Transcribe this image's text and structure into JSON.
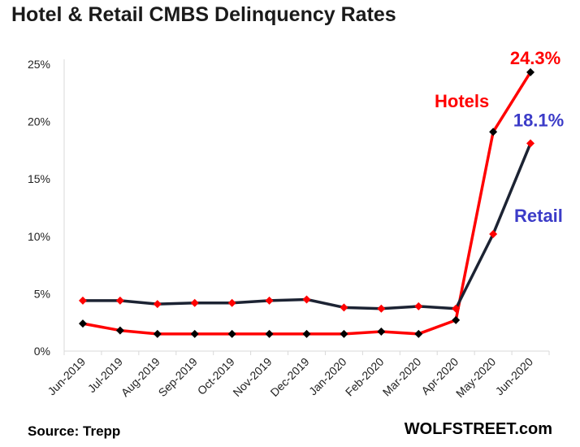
{
  "title": "Hotel & Retail CMBS Delinquency Rates",
  "source": "Source: Trepp",
  "brand": "WOLFSTREET.com",
  "colors": {
    "hotels": "#ff0000",
    "retail": "#1c2333",
    "retail_label": "#3c3cc8",
    "axis": "#d9d9d9"
  },
  "chart_data": {
    "type": "line",
    "title": "Hotel & Retail CMBS Delinquency Rates",
    "xlabel": "",
    "ylabel": "",
    "categories": [
      "Jun-2019",
      "Jul-2019",
      "Aug-2019",
      "Sep-2019",
      "Oct-2019",
      "Nov-2019",
      "Dec-2019",
      "Jan-2020",
      "Feb-2020",
      "Mar-2020",
      "Apr-2020",
      "May-2020",
      "Jun-2020"
    ],
    "ylim": [
      0,
      25
    ],
    "yticks": [
      0,
      5,
      10,
      15,
      20,
      25
    ],
    "ytick_labels": [
      "0%",
      "5%",
      "10%",
      "15%",
      "20%",
      "25%"
    ],
    "grid": false,
    "series": [
      {
        "name": "Hotels",
        "values": [
          2.4,
          1.8,
          1.5,
          1.5,
          1.5,
          1.5,
          1.5,
          1.5,
          1.7,
          1.5,
          2.7,
          19.1,
          24.3
        ],
        "line_color": "#ff0000",
        "marker_color": "#000000",
        "end_label": "24.3%"
      },
      {
        "name": "Retail",
        "values": [
          4.4,
          4.4,
          4.1,
          4.2,
          4.2,
          4.4,
          4.5,
          3.8,
          3.7,
          3.9,
          3.7,
          10.2,
          18.1
        ],
        "line_color": "#1c2333",
        "marker_color": "#ff0000",
        "end_label": "18.1%"
      }
    ]
  }
}
